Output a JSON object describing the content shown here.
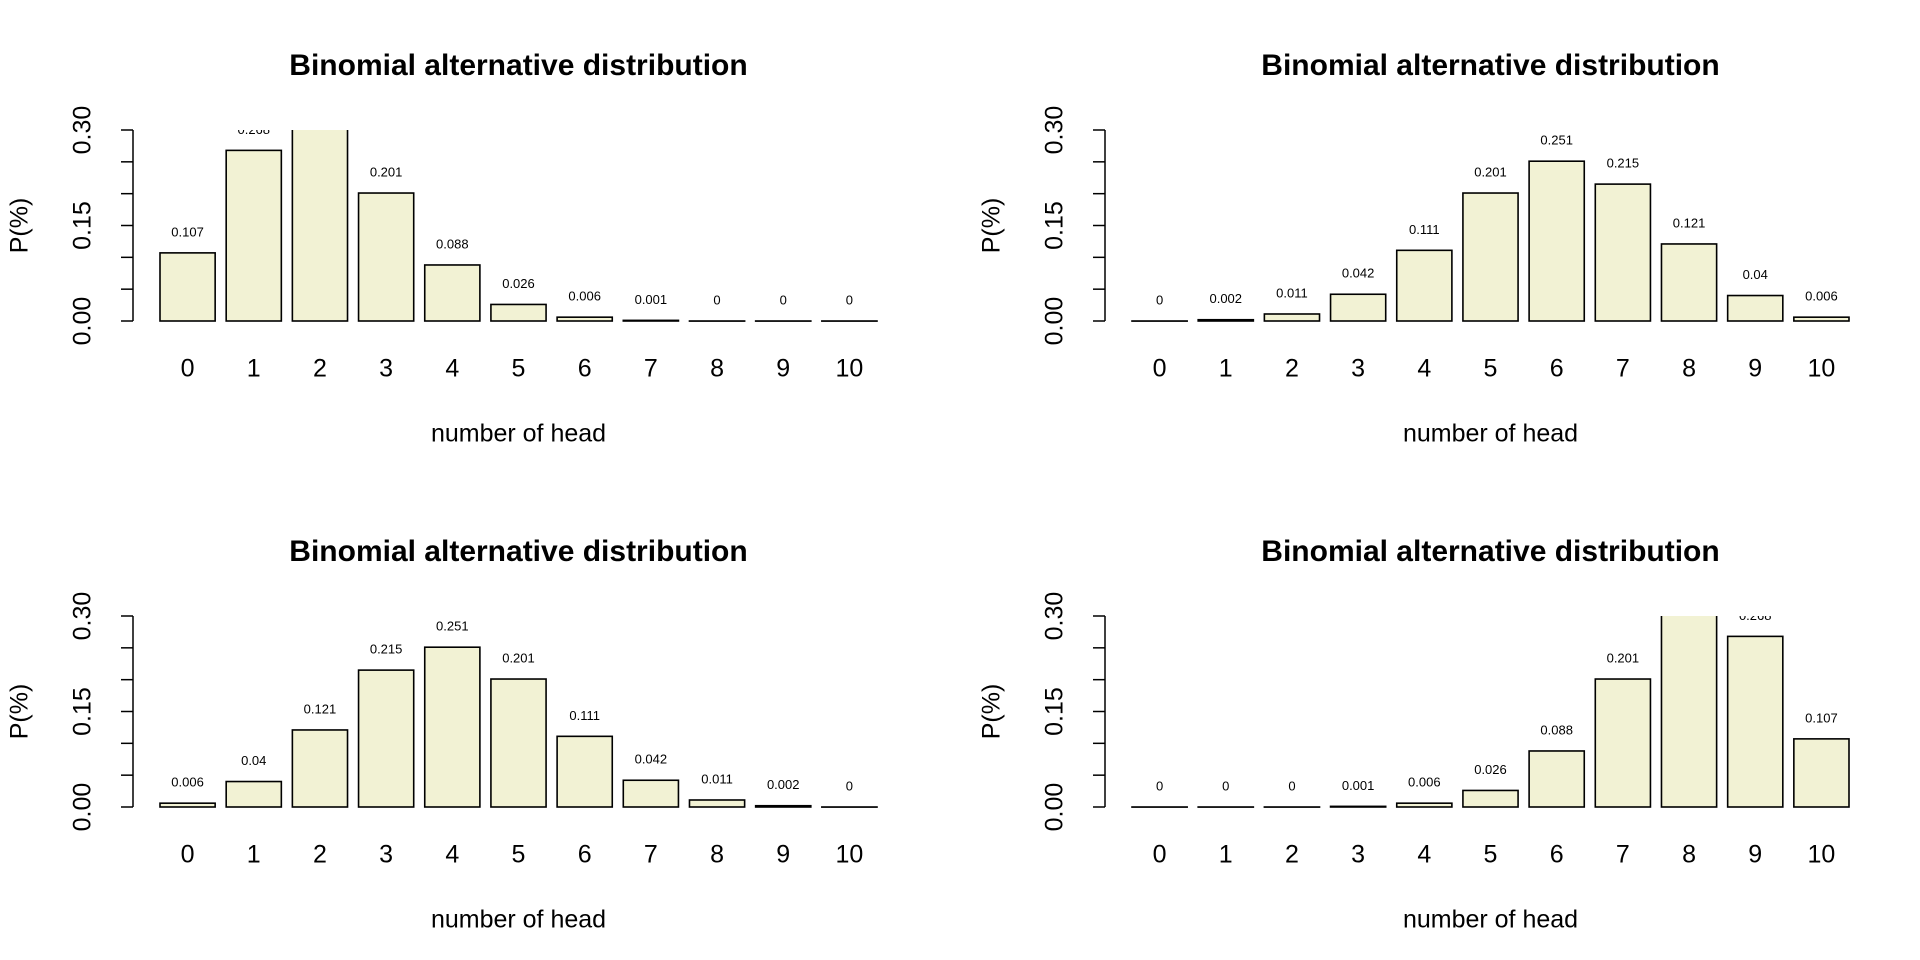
{
  "chart_data": [
    {
      "type": "bar",
      "title": "Binomial alternative distribution",
      "xlabel": "number of head",
      "ylabel": "P(%)",
      "categories": [
        "0",
        "1",
        "2",
        "3",
        "4",
        "5",
        "6",
        "7",
        "8",
        "9",
        "10"
      ],
      "values": [
        0.107,
        0.268,
        0.302,
        0.201,
        0.088,
        0.026,
        0.006,
        0.001,
        0,
        0,
        0
      ],
      "color": "#f2f2d4",
      "ylim": [
        0,
        0.3
      ],
      "yticks": [
        {
          "value": 0,
          "label": "0.00"
        },
        0.15,
        {
          "value": 0.3,
          "label": "0.30"
        }
      ],
      "yminor_ticks": [
        0.05,
        0.1,
        0.2,
        0.25
      ]
    },
    {
      "type": "bar",
      "title": "Binomial alternative distribution",
      "xlabel": "number of head",
      "ylabel": "P(%)",
      "categories": [
        "0",
        "1",
        "2",
        "3",
        "4",
        "5",
        "6",
        "7",
        "8",
        "9",
        "10"
      ],
      "values": [
        0,
        0.002,
        0.011,
        0.042,
        0.111,
        0.201,
        0.251,
        0.215,
        0.121,
        0.04,
        0.006
      ],
      "color": "#f2f2d4",
      "ylim": [
        0,
        0.3
      ],
      "yticks": [
        {
          "value": 0,
          "label": "0.00"
        },
        0.15,
        {
          "value": 0.3,
          "label": "0.30"
        }
      ],
      "yminor_ticks": [
        0.05,
        0.1,
        0.2,
        0.25
      ]
    },
    {
      "type": "bar",
      "title": "Binomial alternative distribution",
      "xlabel": "number of head",
      "ylabel": "P(%)",
      "categories": [
        "0",
        "1",
        "2",
        "3",
        "4",
        "5",
        "6",
        "7",
        "8",
        "9",
        "10"
      ],
      "values": [
        0.006,
        0.04,
        0.121,
        0.215,
        0.251,
        0.201,
        0.111,
        0.042,
        0.011,
        0.002,
        0
      ],
      "color": "#f2f2d4",
      "ylim": [
        0,
        0.3
      ],
      "yticks": [
        {
          "value": 0,
          "label": "0.00"
        },
        0.15,
        {
          "value": 0.3,
          "label": "0.30"
        }
      ],
      "yminor_ticks": [
        0.05,
        0.1,
        0.2,
        0.25
      ]
    },
    {
      "type": "bar",
      "title": "Binomial alternative distribution",
      "xlabel": "number of head",
      "ylabel": "P(%)",
      "categories": [
        "0",
        "1",
        "2",
        "3",
        "4",
        "5",
        "6",
        "7",
        "8",
        "9",
        "10"
      ],
      "values": [
        0,
        0,
        0,
        0.001,
        0.006,
        0.026,
        0.088,
        0.201,
        0.302,
        0.268,
        0.107
      ],
      "color": "#f2f2d4",
      "ylim": [
        0,
        0.3
      ],
      "yticks": [
        {
          "value": 0,
          "label": "0.00"
        },
        0.15,
        {
          "value": 0.3,
          "label": "0.30"
        }
      ],
      "yminor_ticks": [
        0.05,
        0.1,
        0.2,
        0.25
      ]
    }
  ]
}
